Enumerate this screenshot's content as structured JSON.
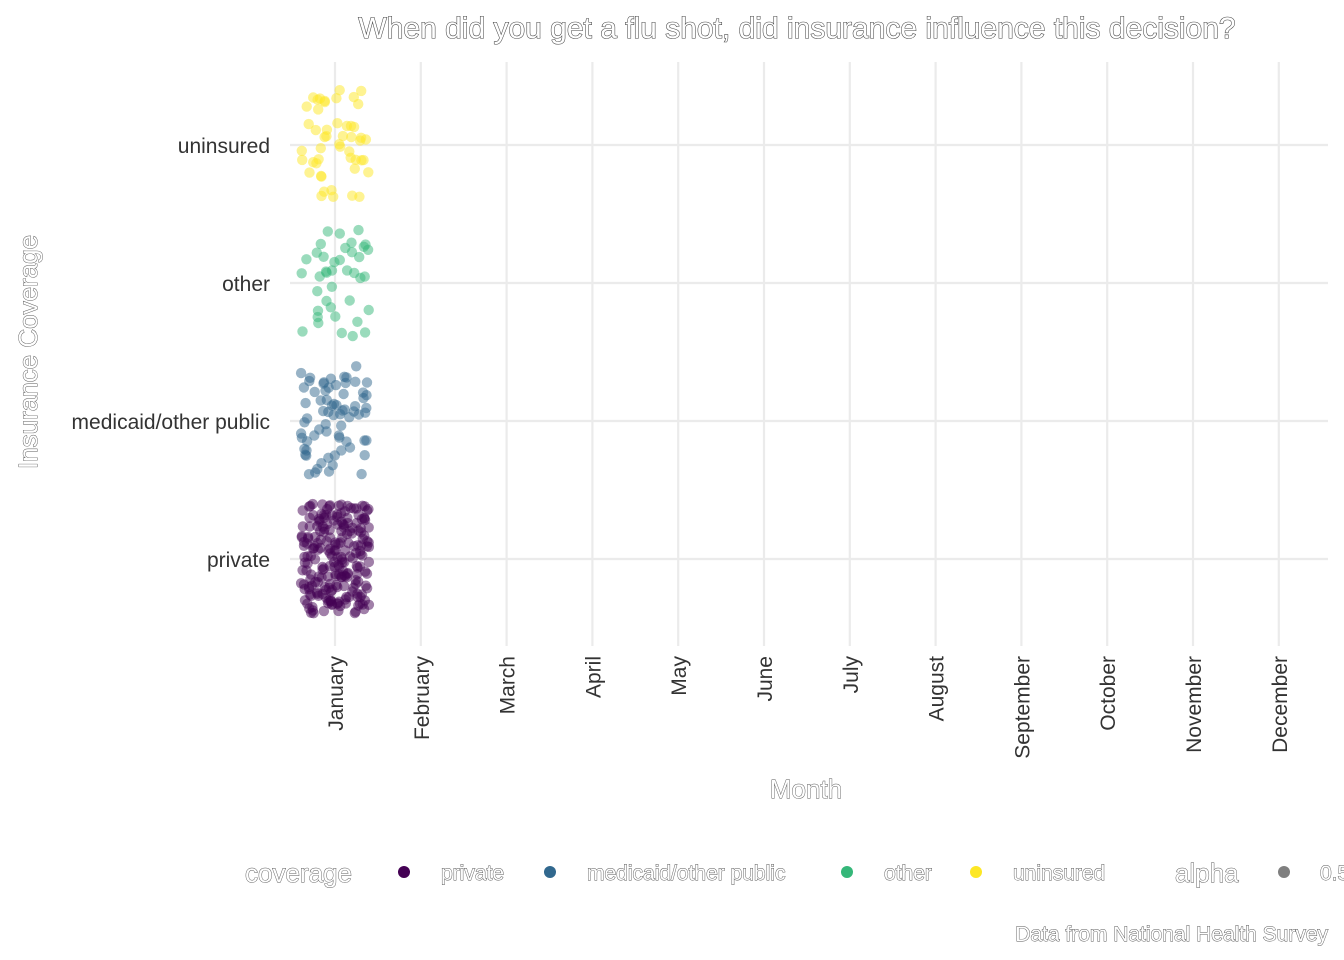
{
  "chart_data": {
    "type": "scatter",
    "title": "When did you get a flu shot, did insurance influence this decision?",
    "xlabel": "Month",
    "ylabel": "Insurance Coverage",
    "caption": "Data from National Health Survey",
    "x_categories": [
      "January",
      "February",
      "March",
      "April",
      "May",
      "June",
      "July",
      "August",
      "September",
      "October",
      "November",
      "December"
    ],
    "y_categories": [
      "private",
      "medicaid/other public",
      "other",
      "uninsured"
    ],
    "grid": true,
    "jitter": true,
    "point_alpha": 0.5,
    "legend": {
      "placement": "bottom",
      "coverage_title": "coverage",
      "alpha_title": "alpha",
      "alpha_value": "0.5",
      "entries": [
        {
          "label": "private",
          "color": "#440154"
        },
        {
          "label": "medicaid/other public",
          "color": "#31688e"
        },
        {
          "label": "other",
          "color": "#35b779"
        },
        {
          "label": "uninsured",
          "color": "#fde725"
        }
      ]
    },
    "series": [
      {
        "name": "private",
        "color": "#440154",
        "x": "January",
        "y": "private",
        "count": 220
      },
      {
        "name": "medicaid/other public",
        "color": "#31688e",
        "x": "January",
        "y": "medicaid/other public",
        "count": 70
      },
      {
        "name": "other",
        "color": "#35b779",
        "x": "January",
        "y": "other",
        "count": 40
      },
      {
        "name": "uninsured",
        "color": "#fde725",
        "x": "January",
        "y": "uninsured",
        "count": 50
      }
    ]
  }
}
